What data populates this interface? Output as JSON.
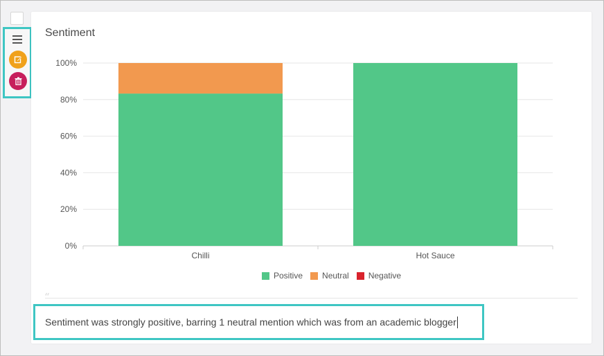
{
  "widget": {
    "title": "Sentiment"
  },
  "toolbar": {
    "menu_icon": "hamburger-menu-icon",
    "edit_icon": "pencil-edit-icon",
    "delete_icon": "trash-icon",
    "edit_color": "#f0a11b",
    "delete_color": "#c71f5c"
  },
  "chart_data": {
    "type": "bar",
    "stacked": true,
    "title": "Sentiment",
    "categories": [
      "Chilli",
      "Hot Sauce"
    ],
    "series": [
      {
        "name": "Positive",
        "color": "#52c788",
        "values": [
          83.3,
          100
        ]
      },
      {
        "name": "Neutral",
        "color": "#f2994f",
        "values": [
          16.7,
          0
        ]
      },
      {
        "name": "Negative",
        "color": "#d9232d",
        "values": [
          0,
          0
        ]
      }
    ],
    "ylim": [
      0,
      100
    ],
    "yticks": [
      "0%",
      "20%",
      "40%",
      "60%",
      "80%",
      "100%"
    ],
    "grid": true,
    "legend": "bottom"
  },
  "comment": {
    "text": "Sentiment was strongly positive, barring 1 neutral mention which was from an academic blogger"
  }
}
